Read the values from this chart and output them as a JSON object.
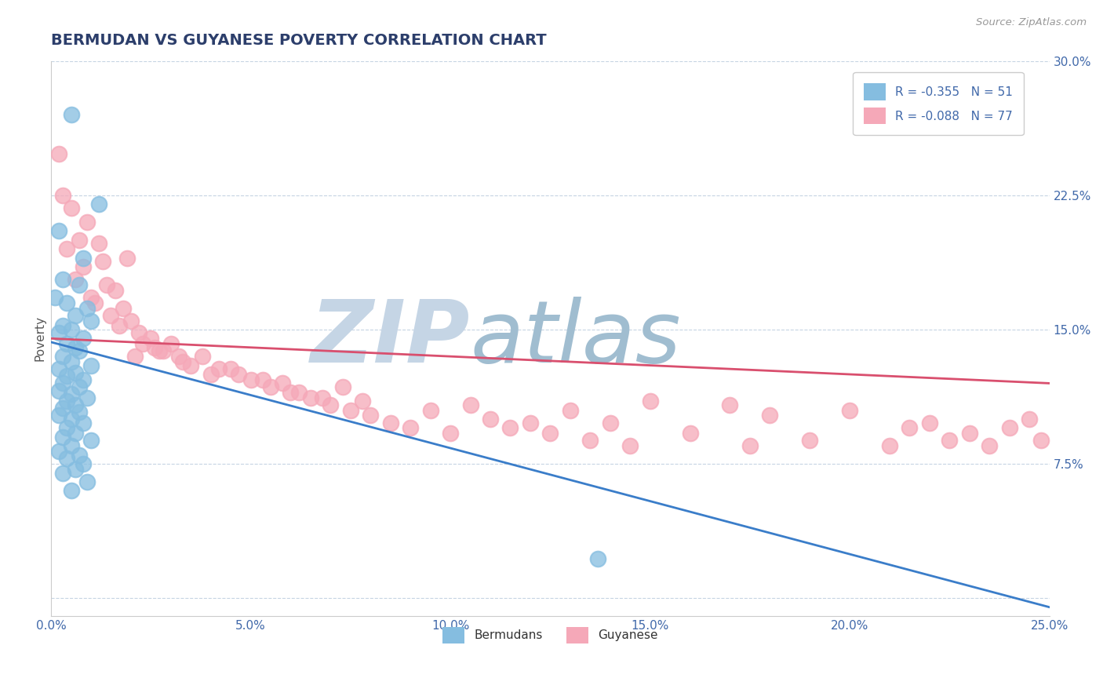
{
  "title": "BERMUDAN VS GUYANESE POVERTY CORRELATION CHART",
  "source": "Source: ZipAtlas.com",
  "ylabel": "Poverty",
  "xlim": [
    0.0,
    0.25
  ],
  "ylim": [
    -0.01,
    0.3
  ],
  "xticks": [
    0.0,
    0.05,
    0.1,
    0.15,
    0.2,
    0.25
  ],
  "yticks": [
    0.0,
    0.075,
    0.15,
    0.225,
    0.3
  ],
  "xtick_labels": [
    "0.0%",
    "5.0%",
    "10.0%",
    "15.0%",
    "20.0%",
    "25.0%"
  ],
  "ytick_labels": [
    "",
    "7.5%",
    "15.0%",
    "22.5%",
    "30.0%"
  ],
  "blue_color": "#85bde0",
  "pink_color": "#f5a8b8",
  "trend_blue": "#3a7dc9",
  "trend_pink": "#d94f6e",
  "legend_R1": "R = -0.355",
  "legend_N1": "N = 51",
  "legend_R2": "R = -0.088",
  "legend_N2": "N = 77",
  "bermuda_x": [
    0.005,
    0.012,
    0.002,
    0.008,
    0.003,
    0.007,
    0.001,
    0.004,
    0.009,
    0.006,
    0.01,
    0.003,
    0.005,
    0.002,
    0.008,
    0.004,
    0.006,
    0.007,
    0.003,
    0.005,
    0.01,
    0.002,
    0.006,
    0.004,
    0.008,
    0.003,
    0.007,
    0.002,
    0.005,
    0.009,
    0.004,
    0.006,
    0.003,
    0.007,
    0.002,
    0.005,
    0.008,
    0.004,
    0.006,
    0.003,
    0.01,
    0.005,
    0.002,
    0.007,
    0.004,
    0.008,
    0.006,
    0.003,
    0.009,
    0.005,
    0.137
  ],
  "bermuda_y": [
    0.27,
    0.22,
    0.205,
    0.19,
    0.178,
    0.175,
    0.168,
    0.165,
    0.162,
    0.158,
    0.155,
    0.152,
    0.15,
    0.148,
    0.145,
    0.142,
    0.14,
    0.138,
    0.135,
    0.132,
    0.13,
    0.128,
    0.126,
    0.124,
    0.122,
    0.12,
    0.118,
    0.116,
    0.114,
    0.112,
    0.11,
    0.108,
    0.106,
    0.104,
    0.102,
    0.1,
    0.098,
    0.095,
    0.092,
    0.09,
    0.088,
    0.085,
    0.082,
    0.08,
    0.078,
    0.075,
    0.072,
    0.07,
    0.065,
    0.06,
    0.022
  ],
  "guyanese_x": [
    0.002,
    0.003,
    0.012,
    0.019,
    0.005,
    0.007,
    0.009,
    0.004,
    0.013,
    0.008,
    0.006,
    0.014,
    0.01,
    0.016,
    0.011,
    0.018,
    0.015,
    0.02,
    0.017,
    0.022,
    0.025,
    0.023,
    0.028,
    0.03,
    0.021,
    0.026,
    0.032,
    0.035,
    0.027,
    0.04,
    0.033,
    0.045,
    0.038,
    0.05,
    0.042,
    0.055,
    0.047,
    0.06,
    0.053,
    0.065,
    0.058,
    0.07,
    0.062,
    0.075,
    0.068,
    0.08,
    0.073,
    0.085,
    0.078,
    0.09,
    0.095,
    0.1,
    0.105,
    0.11,
    0.115,
    0.12,
    0.125,
    0.13,
    0.135,
    0.14,
    0.145,
    0.15,
    0.16,
    0.17,
    0.175,
    0.18,
    0.19,
    0.2,
    0.21,
    0.215,
    0.22,
    0.225,
    0.23,
    0.235,
    0.24,
    0.245,
    0.248
  ],
  "guyanese_y": [
    0.248,
    0.225,
    0.198,
    0.19,
    0.218,
    0.2,
    0.21,
    0.195,
    0.188,
    0.185,
    0.178,
    0.175,
    0.168,
    0.172,
    0.165,
    0.162,
    0.158,
    0.155,
    0.152,
    0.148,
    0.145,
    0.142,
    0.138,
    0.142,
    0.135,
    0.14,
    0.135,
    0.13,
    0.138,
    0.125,
    0.132,
    0.128,
    0.135,
    0.122,
    0.128,
    0.118,
    0.125,
    0.115,
    0.122,
    0.112,
    0.12,
    0.108,
    0.115,
    0.105,
    0.112,
    0.102,
    0.118,
    0.098,
    0.11,
    0.095,
    0.105,
    0.092,
    0.108,
    0.1,
    0.095,
    0.098,
    0.092,
    0.105,
    0.088,
    0.098,
    0.085,
    0.11,
    0.092,
    0.108,
    0.085,
    0.102,
    0.088,
    0.105,
    0.085,
    0.095,
    0.098,
    0.088,
    0.092,
    0.085,
    0.095,
    0.1,
    0.088
  ],
  "watermark_zip": "ZIP",
  "watermark_atlas": "atlas",
  "watermark_color_zip": "#c5d5e5",
  "watermark_color_atlas": "#a0bdd0",
  "background_color": "#ffffff",
  "title_color": "#2c3e6b",
  "tick_color": "#4169aa",
  "grid_color": "#c0d0e0",
  "title_fontsize": 14,
  "axis_label_fontsize": 11,
  "tick_fontsize": 11,
  "legend_fontsize": 11,
  "trend_blue_x0": 0.0,
  "trend_blue_y0": 0.143,
  "trend_blue_x1": 0.25,
  "trend_blue_y1": -0.005,
  "trend_pink_x0": 0.0,
  "trend_pink_y0": 0.145,
  "trend_pink_x1": 0.25,
  "trend_pink_y1": 0.12
}
